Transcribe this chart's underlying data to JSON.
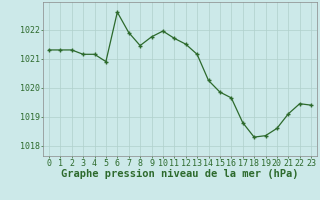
{
  "x": [
    0,
    1,
    2,
    3,
    4,
    5,
    6,
    7,
    8,
    9,
    10,
    11,
    12,
    13,
    14,
    15,
    16,
    17,
    18,
    19,
    20,
    21,
    22,
    23
  ],
  "y": [
    1021.3,
    1021.3,
    1021.3,
    1021.15,
    1021.15,
    1020.9,
    1022.6,
    1021.9,
    1021.45,
    1021.75,
    1021.95,
    1021.7,
    1021.5,
    1021.15,
    1020.25,
    1019.85,
    1019.65,
    1018.8,
    1018.3,
    1018.35,
    1018.6,
    1019.1,
    1019.45,
    1019.4
  ],
  "line_color": "#2d6a2d",
  "marker": "+",
  "marker_size": 3.5,
  "line_width": 0.9,
  "bg_color": "#cce9e9",
  "plot_bg_color": "#cce9e9",
  "grid_color": "#b0d0cc",
  "axis_color": "#2d6a2d",
  "xlabel": "Graphe pression niveau de la mer (hPa)",
  "xlabel_fontsize": 7.5,
  "xlabel_color": "#2d6a2d",
  "ylabel_ticks": [
    1018,
    1019,
    1020,
    1021,
    1022
  ],
  "xtick_labels": [
    "0",
    "1",
    "2",
    "3",
    "4",
    "5",
    "6",
    "7",
    "8",
    "9",
    "10",
    "11",
    "12",
    "13",
    "14",
    "15",
    "16",
    "17",
    "18",
    "19",
    "20",
    "21",
    "22",
    "23"
  ],
  "ylim": [
    1017.65,
    1022.95
  ],
  "xlim": [
    -0.5,
    23.5
  ],
  "tick_fontsize": 6.0,
  "spine_color": "#888888"
}
